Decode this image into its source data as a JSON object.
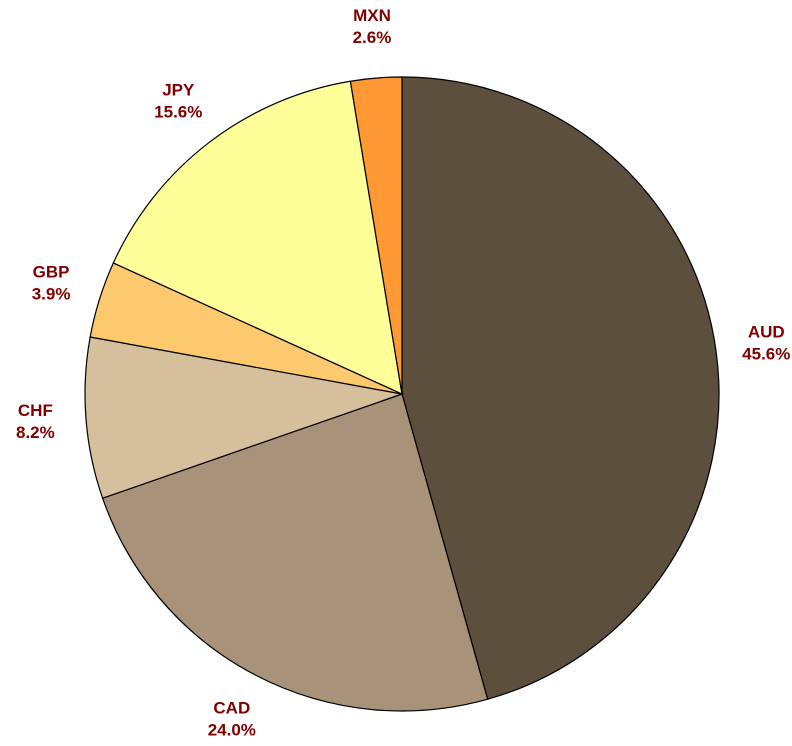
{
  "chart_data": {
    "type": "pie",
    "categories": [
      "AUD",
      "CAD",
      "CHF",
      "GBP",
      "JPY",
      "MXN"
    ],
    "values": [
      45.6,
      24.0,
      8.2,
      3.9,
      15.6,
      2.6
    ],
    "value_labels": [
      "45.6%",
      "24.0%",
      "8.2%",
      "3.9%",
      "15.6%",
      "2.6%"
    ],
    "colors": [
      "#5c4f3e",
      "#a8937a",
      "#d5bf9c",
      "#fcc96e",
      "#ffff99",
      "#ff9933"
    ]
  }
}
